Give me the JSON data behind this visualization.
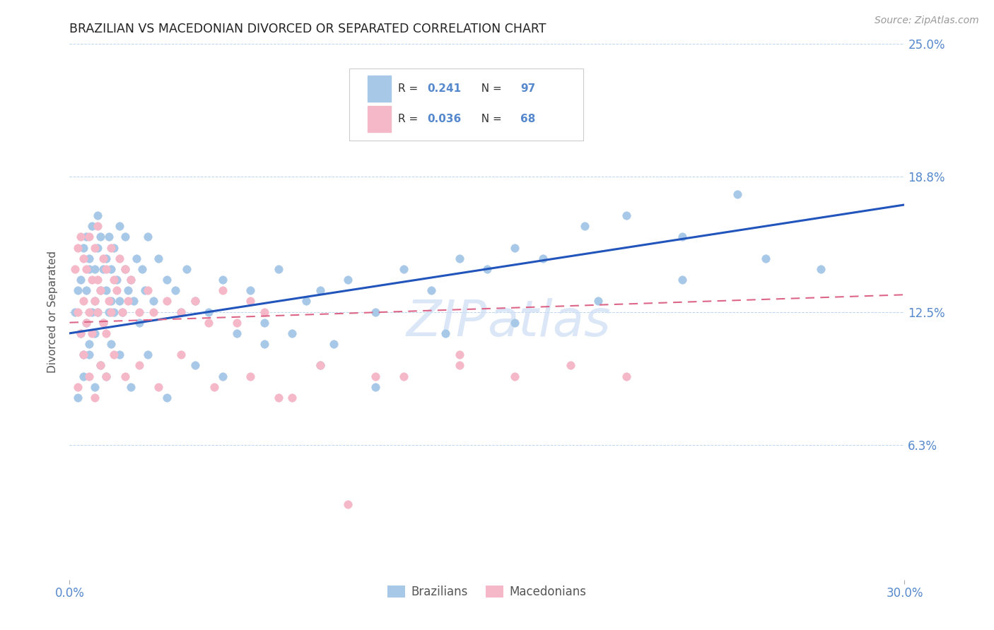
{
  "title": "BRAZILIAN VS MACEDONIAN DIVORCED OR SEPARATED CORRELATION CHART",
  "source": "Source: ZipAtlas.com",
  "ylabel": "Divorced or Separated",
  "xlim": [
    0.0,
    30.0
  ],
  "ylim": [
    0.0,
    25.0
  ],
  "yticks": [
    6.3,
    12.5,
    18.8,
    25.0
  ],
  "ytick_labels": [
    "6.3%",
    "12.5%",
    "18.8%",
    "25.0%"
  ],
  "r1_val": "0.241",
  "n1_val": "97",
  "r2_val": "0.036",
  "n2_val": "68",
  "brazilian_color": "#a8c8e8",
  "macedonian_color": "#f5b8c8",
  "trend_blue": "#2255bb",
  "trend_pink": "#dd6688",
  "axis_color": "#5588cc",
  "title_color": "#222222",
  "watermark_color": "#ccddf5",
  "seed": 12345,
  "braz_x": [
    0.2,
    0.3,
    0.4,
    0.4,
    0.5,
    0.5,
    0.6,
    0.6,
    0.6,
    0.7,
    0.7,
    0.7,
    0.8,
    0.8,
    0.9,
    0.9,
    0.9,
    1.0,
    1.0,
    1.0,
    1.1,
    1.1,
    1.2,
    1.2,
    1.3,
    1.3,
    1.4,
    1.4,
    1.5,
    1.5,
    1.6,
    1.6,
    1.7,
    1.8,
    1.8,
    1.9,
    2.0,
    2.0,
    2.1,
    2.2,
    2.3,
    2.4,
    2.5,
    2.6,
    2.7,
    2.8,
    3.0,
    3.2,
    3.5,
    3.8,
    4.0,
    4.2,
    4.5,
    5.0,
    5.5,
    6.0,
    6.5,
    7.0,
    7.5,
    8.0,
    8.5,
    9.0,
    9.5,
    10.0,
    11.0,
    12.0,
    13.0,
    14.0,
    15.0,
    16.0,
    17.0,
    18.5,
    20.0,
    22.0,
    24.0,
    0.3,
    0.5,
    0.7,
    0.9,
    1.1,
    1.3,
    1.5,
    1.8,
    2.2,
    2.8,
    3.5,
    4.5,
    5.5,
    7.0,
    9.0,
    11.0,
    13.5,
    16.0,
    19.0,
    22.0,
    25.0,
    27.0
  ],
  "braz_y": [
    12.5,
    13.5,
    11.5,
    14.0,
    15.5,
    10.5,
    16.0,
    12.0,
    13.5,
    14.5,
    11.0,
    15.0,
    12.5,
    16.5,
    13.0,
    14.5,
    11.5,
    15.5,
    12.5,
    17.0,
    13.5,
    16.0,
    12.0,
    14.5,
    13.5,
    15.0,
    12.5,
    16.0,
    13.0,
    14.5,
    12.5,
    15.5,
    14.0,
    13.0,
    16.5,
    12.5,
    14.5,
    16.0,
    13.5,
    14.0,
    13.0,
    15.0,
    12.0,
    14.5,
    13.5,
    16.0,
    13.0,
    15.0,
    14.0,
    13.5,
    12.5,
    14.5,
    13.0,
    12.5,
    14.0,
    11.5,
    13.5,
    12.0,
    14.5,
    11.5,
    13.0,
    13.5,
    11.0,
    14.0,
    12.5,
    14.5,
    13.5,
    15.0,
    14.5,
    15.5,
    15.0,
    16.5,
    17.0,
    16.0,
    18.0,
    8.5,
    9.5,
    10.5,
    9.0,
    10.0,
    9.5,
    11.0,
    10.5,
    9.0,
    10.5,
    8.5,
    10.0,
    9.5,
    11.0,
    10.0,
    9.0,
    11.5,
    12.0,
    13.0,
    14.0,
    15.0,
    14.5
  ],
  "mac_x": [
    0.2,
    0.3,
    0.3,
    0.4,
    0.4,
    0.5,
    0.5,
    0.6,
    0.6,
    0.7,
    0.7,
    0.8,
    0.8,
    0.9,
    0.9,
    1.0,
    1.0,
    1.0,
    1.1,
    1.2,
    1.2,
    1.3,
    1.3,
    1.4,
    1.5,
    1.5,
    1.6,
    1.7,
    1.8,
    1.9,
    2.0,
    2.1,
    2.2,
    2.5,
    2.8,
    3.0,
    3.5,
    4.0,
    4.5,
    5.0,
    5.5,
    6.0,
    6.5,
    7.0,
    0.3,
    0.5,
    0.7,
    0.9,
    1.1,
    1.3,
    1.6,
    2.0,
    2.5,
    3.2,
    4.0,
    5.2,
    6.5,
    8.0,
    10.0,
    12.0,
    14.0,
    16.0,
    18.0,
    20.0,
    7.5,
    9.0,
    11.0,
    14.0
  ],
  "mac_y": [
    14.5,
    15.5,
    12.5,
    16.0,
    11.5,
    15.0,
    13.0,
    14.5,
    12.0,
    16.0,
    12.5,
    14.0,
    11.5,
    15.5,
    13.0,
    14.0,
    12.5,
    16.5,
    13.5,
    15.0,
    12.0,
    14.5,
    11.5,
    13.0,
    15.5,
    12.5,
    14.0,
    13.5,
    15.0,
    12.5,
    14.5,
    13.0,
    14.0,
    12.5,
    13.5,
    12.5,
    13.0,
    12.5,
    13.0,
    12.0,
    13.5,
    12.0,
    13.0,
    12.5,
    9.0,
    10.5,
    9.5,
    8.5,
    10.0,
    9.5,
    10.5,
    9.5,
    10.0,
    9.0,
    10.5,
    9.0,
    9.5,
    8.5,
    3.5,
    9.5,
    10.5,
    9.5,
    10.0,
    9.5,
    8.5,
    10.0,
    9.5,
    10.0
  ]
}
